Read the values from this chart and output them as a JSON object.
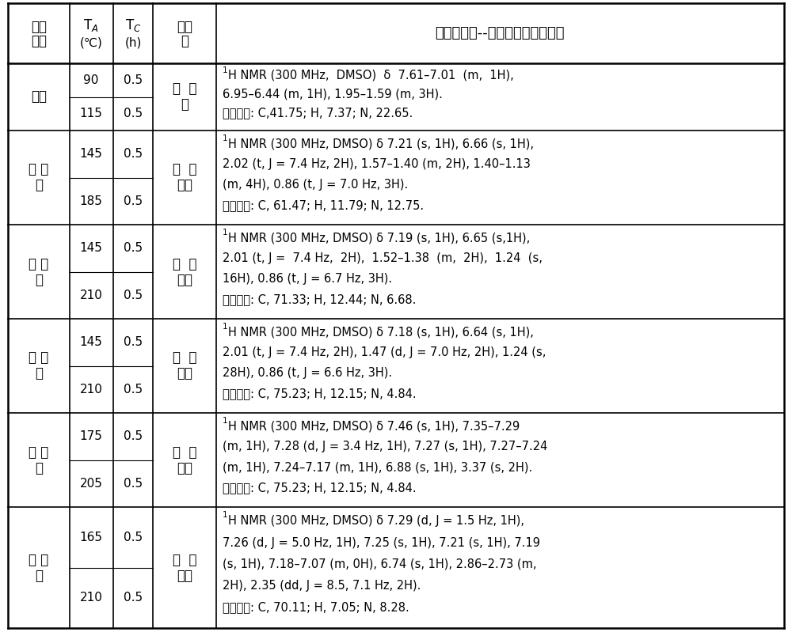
{
  "title": "中间体表征--核磁氢谱和元素分析",
  "background": "#ffffff",
  "rows": [
    {
      "acid": "乙酸",
      "temps": [
        90,
        115
      ],
      "tc": [
        0.5,
        0.5
      ],
      "intermediate": "乙  酰\n胺",
      "nmr_line1": "H NMR (300 MHz,  DMSO)  δ  7.61–7.01  (m,  1H),",
      "nmr_rest": "6.95–6.44 (m, 1H), 1.95–1.59 (m, 3H).\n元素分析: C,41.75; H, 7.37; N, 22.65.",
      "nmr_lines_count": 3
    },
    {
      "acid": "正 己\n酸",
      "temps": [
        145,
        185
      ],
      "tc": [
        0.5,
        0.5
      ],
      "intermediate": "正  己\n酰胺",
      "nmr_line1": "H NMR (300 MHz, DMSO) δ 7.21 (s, 1H), 6.66 (s, 1H),",
      "nmr_rest": "2.02 (t, J = 7.4 Hz, 2H), 1.57–1.40 (m, 2H), 1.40–1.13\n(m, 4H), 0.86 (t, J = 7.0 Hz, 3H).\n元素分析: C, 61.47; H, 11.79; N, 12.75.",
      "nmr_lines_count": 4
    },
    {
      "acid": "十 二\n酸",
      "temps": [
        145,
        210
      ],
      "tc": [
        0.5,
        0.5
      ],
      "intermediate": "十  二\n酰胺",
      "nmr_line1": "H NMR (300 MHz, DMSO) δ 7.19 (s, 1H), 6.65 (s,1H),",
      "nmr_rest": "2.01 (t, J =  7.4 Hz,  2H),  1.52–1.38  (m,  2H),  1.24  (s,\n16H), 0.86 (t, J = 6.7 Hz, 3H).\n元素分析: C, 71.33; H, 12.44; N, 6.68.",
      "nmr_lines_count": 4
    },
    {
      "acid": "十 八\n酸",
      "temps": [
        145,
        210
      ],
      "tc": [
        0.5,
        0.5
      ],
      "intermediate": "十  八\n酰胺",
      "nmr_line1": "H NMR (300 MHz, DMSO) δ 7.18 (s, 1H), 6.64 (s, 1H),",
      "nmr_rest": "2.01 (t, J = 7.4 Hz, 2H), 1.47 (d, J = 7.0 Hz, 2H), 1.24 (s,\n28H), 0.86 (t, J = 6.6 Hz, 3H).\n元素分析: C, 75.23; H, 12.15; N, 4.84.",
      "nmr_lines_count": 4
    },
    {
      "acid": "苯 乙\n酸",
      "temps": [
        175,
        205
      ],
      "tc": [
        0.5,
        0.5
      ],
      "intermediate": "苯  乙\n酰胺",
      "nmr_line1": "H NMR (300 MHz, DMSO) δ 7.46 (s, 1H), 7.35–7.29",
      "nmr_rest": "(m, 1H), 7.28 (d, J = 3.4 Hz, 1H), 7.27 (s, 1H), 7.27–7.24\n(m, 1H), 7.24–7.17 (m, 1H), 6.88 (s, 1H), 3.37 (s, 2H).\n元素分析: C, 75.23; H, 12.15; N, 4.84.",
      "nmr_lines_count": 4
    },
    {
      "acid": "苯 丙\n酸",
      "temps": [
        165,
        210
      ],
      "tc": [
        0.5,
        0.5
      ],
      "intermediate": "苯  丙\n酰胺",
      "nmr_line1": "H NMR (300 MHz, DMSO) δ 7.29 (d, J = 1.5 Hz, 1H),",
      "nmr_rest": "7.26 (d, J = 5.0 Hz, 1H), 7.25 (s, 1H), 7.21 (s, 1H), 7.19\n(s, 1H), 7.18–7.07 (m, 0H), 6.74 (s, 1H), 2.86–2.73 (m,\n2H), 2.35 (dd, J = 8.5, 7.1 Hz, 2H).\n元素分析: C, 70.11; H, 7.05; N, 8.28.",
      "nmr_lines_count": 5
    }
  ]
}
